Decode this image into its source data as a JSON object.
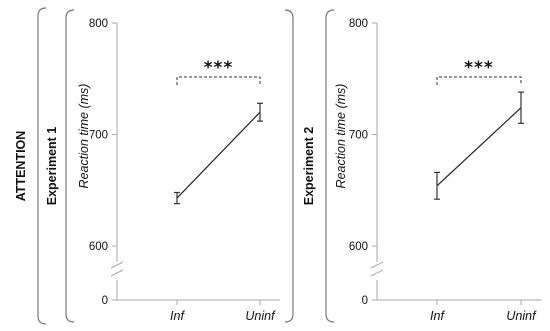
{
  "row_label": "ATTENTION",
  "chart_data": [
    {
      "type": "line",
      "panel_label": "Experiment 1",
      "ylabel": "Reaction time (ms)",
      "categories": [
        "Inf",
        "Uninf"
      ],
      "values": [
        643,
        720
      ],
      "errors": [
        5,
        8
      ],
      "yticks": [
        "800",
        "700",
        "600",
        "0"
      ],
      "ylim": [
        600,
        800
      ],
      "axis_break": true,
      "significance": "***",
      "grid": false
    },
    {
      "type": "line",
      "panel_label": "Experiment 2",
      "ylabel": "Reaction time (ms)",
      "categories": [
        "Inf",
        "Uninf"
      ],
      "values": [
        654,
        724
      ],
      "errors": [
        12,
        14
      ],
      "yticks": [
        "800",
        "700",
        "600",
        "0"
      ],
      "ylim": [
        600,
        800
      ],
      "axis_break": true,
      "significance": "***",
      "grid": false
    }
  ]
}
